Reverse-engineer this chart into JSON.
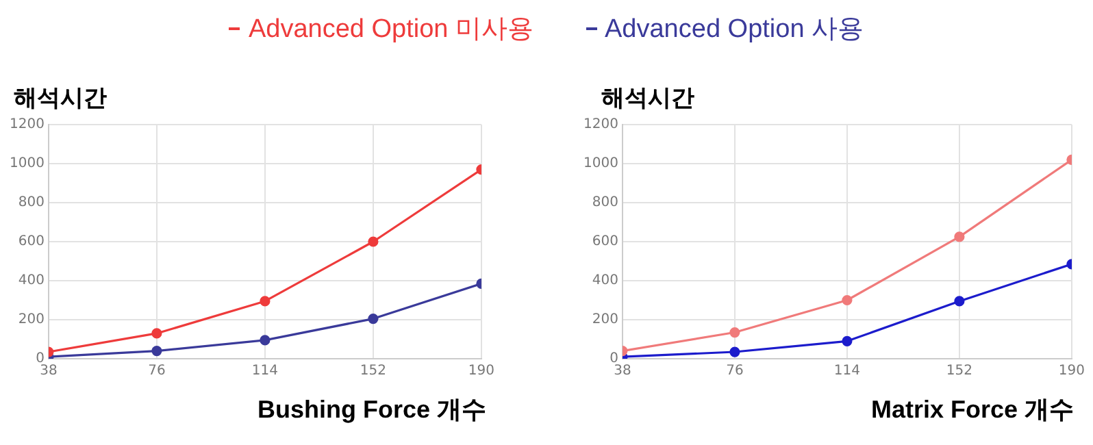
{
  "chart_data": [
    {
      "type": "line",
      "ylabel": "해석시간",
      "xlabel": "Bushing Force 개수",
      "x": [
        38,
        76,
        114,
        152,
        190
      ],
      "xlim": [
        38,
        190
      ],
      "xticks": [
        38,
        76,
        114,
        152,
        190
      ],
      "ylim": [
        0,
        1200
      ],
      "yticks": [
        0,
        200,
        400,
        600,
        800,
        1000,
        1200
      ],
      "grid": true,
      "marker": "circle",
      "legend": "top",
      "series": [
        {
          "name": "Advanced Option 미사용",
          "color": "#ee3b3b",
          "values": [
            35,
            130,
            295,
            600,
            970
          ]
        },
        {
          "name": "Advanced Option 사용",
          "color": "#3a3a9a",
          "values": [
            10,
            40,
            95,
            205,
            385
          ]
        }
      ]
    },
    {
      "type": "line",
      "ylabel": "해석시간",
      "xlabel": "Matrix Force 개수",
      "x": [
        38,
        76,
        114,
        152,
        190
      ],
      "xlim": [
        38,
        190
      ],
      "xticks": [
        38,
        76,
        114,
        152,
        190
      ],
      "ylim": [
        0,
        1200
      ],
      "yticks": [
        0,
        200,
        400,
        600,
        800,
        1000,
        1200
      ],
      "grid": true,
      "marker": "circle",
      "series": [
        {
          "color": "#f07a7a",
          "values": [
            40,
            135,
            300,
            625,
            1020
          ]
        },
        {
          "color": "#1c1ccc",
          "values": [
            10,
            35,
            90,
            295,
            485
          ]
        }
      ]
    }
  ]
}
